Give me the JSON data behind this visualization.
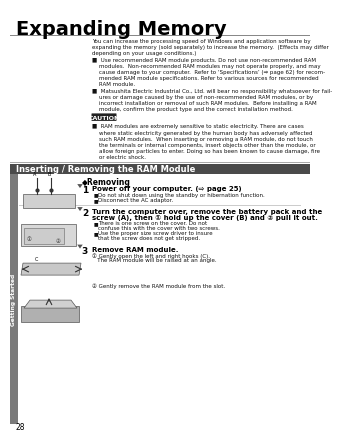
{
  "title": "Expanding Memory",
  "bg_color": "#ffffff",
  "title_color": "#000000",
  "section_bar_color": "#4a4a4a",
  "section_text": "Inserting / Removing the RAM Module",
  "section_text_color": "#ffffff",
  "sidebar_text": "Getting Started",
  "sidebar_bg": "#7a7a7a",
  "page_num": "28",
  "caution_bg": "#333333",
  "caution_text": "CAUTION",
  "body_lines": [
    "You can increase the processing speed of Windows and application software by",
    "expanding the memory (sold separately) to increase the memory.  (Effects may differ",
    "depending on your usage conditions.)",
    "■  Use recommended RAM module products. Do not use non-recommended RAM",
    "    modules.  Non-recommended RAM modules may not operate properly, and may",
    "    cause damage to your computer.  Refer to ‘Specifications’ (⇒ page 62) for recom-",
    "    mended RAM module specifications. Refer to various sources for recommended",
    "    RAM module.",
    "■  Matsushita Electric Industrial Co., Ltd. will bear no responsibility whatsoever for fail-",
    "    ures or damage caused by the use of non-recommended RAM modules, or by",
    "    incorrect installation or removal of such RAM modules.  Before installing a RAM",
    "    module, confirm the product type and the correct installation method."
  ],
  "caution_lines": [
    "■  RAM modules are extremely sensitive to static electricity. There are cases",
    "    where static electricity generated by the human body has adversely affected",
    "    such RAM modules.  When inserting or removing a RAM module, do not touch",
    "    the terminals or internal components, insert objects other than the module, or",
    "    allow foreign particles to enter. Doing so has been known to cause damage, fire",
    "    or electric shock."
  ],
  "removing_title": "◆Removing",
  "steps": [
    {
      "num": "1",
      "bold": "Power off your computer. (⇨ page 25)",
      "bullets": [
        "Do not shut down using the standby or hibernation function.",
        "Disconnect the AC adaptor."
      ],
      "sub": []
    },
    {
      "num": "2",
      "bold_lines": [
        "Turn the computer over, remove the battery pack and the",
        "screw (A), then ① hold up the cover (B) and ② pull it out."
      ],
      "bullets": [
        "There is one screw on the cover.  Do not confuse this with the cover with two screws.",
        "Use the proper size screw driver to insure that the screw does not get stripped."
      ],
      "sub": []
    },
    {
      "num": "3",
      "bold": "Remove RAM module.",
      "bullets": [],
      "sub": [
        "① Gently open the left and right hooks (C).\n   The RAM module will be raised at an angle.",
        "② Gently remove the RAM module from the slot."
      ]
    }
  ]
}
